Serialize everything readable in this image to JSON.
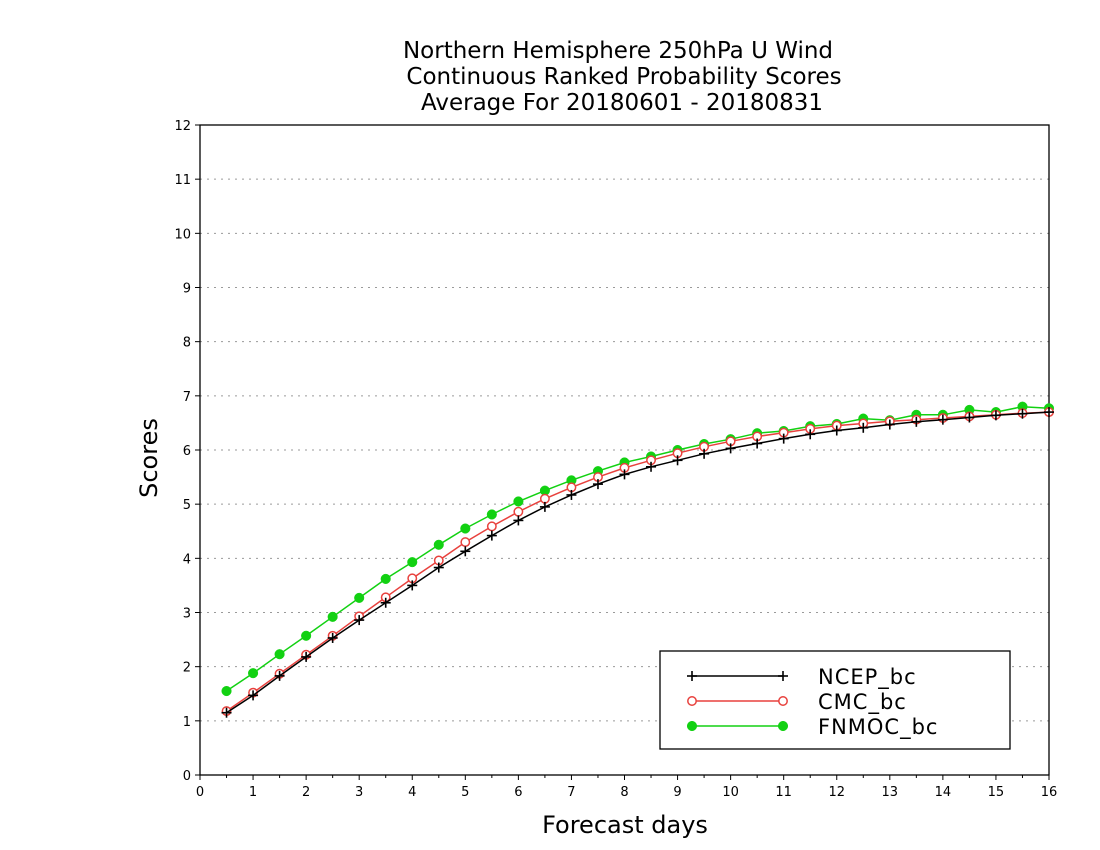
{
  "chart_data": {
    "type": "line",
    "title": [
      "Northern Hemisphere 250hPa U Wind",
      "Continuous Ranked Probability Scores",
      "Average For 20180601 - 20180831"
    ],
    "xlabel": "Forecast days",
    "ylabel": "Scores",
    "xlim": [
      0,
      16
    ],
    "ylim": [
      0,
      12
    ],
    "xticks": [
      0,
      1,
      2,
      3,
      4,
      5,
      6,
      7,
      8,
      9,
      10,
      11,
      12,
      13,
      14,
      15,
      16
    ],
    "yticks": [
      0,
      1,
      2,
      3,
      4,
      5,
      6,
      7,
      8,
      9,
      10,
      11,
      12
    ],
    "grid": true,
    "legend_position": "bottom-right",
    "x": [
      0.5,
      1,
      1.5,
      2,
      2.5,
      3,
      3.5,
      4,
      4.5,
      5,
      5.5,
      6,
      6.5,
      7,
      7.5,
      8,
      8.5,
      9,
      9.5,
      10,
      10.5,
      11,
      11.5,
      12,
      12.5,
      13,
      13.5,
      14,
      14.5,
      15,
      15.5,
      16
    ],
    "series": [
      {
        "name": "NCEP_bc",
        "color": "#000000",
        "marker": "plus",
        "values": [
          1.15,
          1.47,
          1.83,
          2.18,
          2.53,
          2.86,
          3.18,
          3.5,
          3.83,
          4.13,
          4.42,
          4.7,
          4.95,
          5.17,
          5.37,
          5.55,
          5.69,
          5.81,
          5.93,
          6.03,
          6.12,
          6.21,
          6.29,
          6.36,
          6.41,
          6.47,
          6.52,
          6.56,
          6.6,
          6.64,
          6.67,
          6.7
        ]
      },
      {
        "name": "CMC_bc",
        "color": "#e8413d",
        "marker": "open-circle",
        "values": [
          1.18,
          1.52,
          1.87,
          2.22,
          2.57,
          2.93,
          3.28,
          3.63,
          3.96,
          4.3,
          4.59,
          4.86,
          5.1,
          5.31,
          5.5,
          5.67,
          5.81,
          5.94,
          6.06,
          6.16,
          6.25,
          6.32,
          6.39,
          6.45,
          6.49,
          6.53,
          6.56,
          6.59,
          6.62,
          6.65,
          6.68,
          6.7
        ]
      },
      {
        "name": "FNMOC_bc",
        "color": "#12d112",
        "marker": "filled-circle",
        "values": [
          1.55,
          1.88,
          2.23,
          2.57,
          2.92,
          3.27,
          3.62,
          3.93,
          4.25,
          4.55,
          4.81,
          5.05,
          5.25,
          5.44,
          5.61,
          5.77,
          5.88,
          6.0,
          6.11,
          6.2,
          6.31,
          6.35,
          6.44,
          6.48,
          6.58,
          6.55,
          6.65,
          6.65,
          6.74,
          6.7,
          6.8,
          6.77
        ]
      }
    ]
  }
}
